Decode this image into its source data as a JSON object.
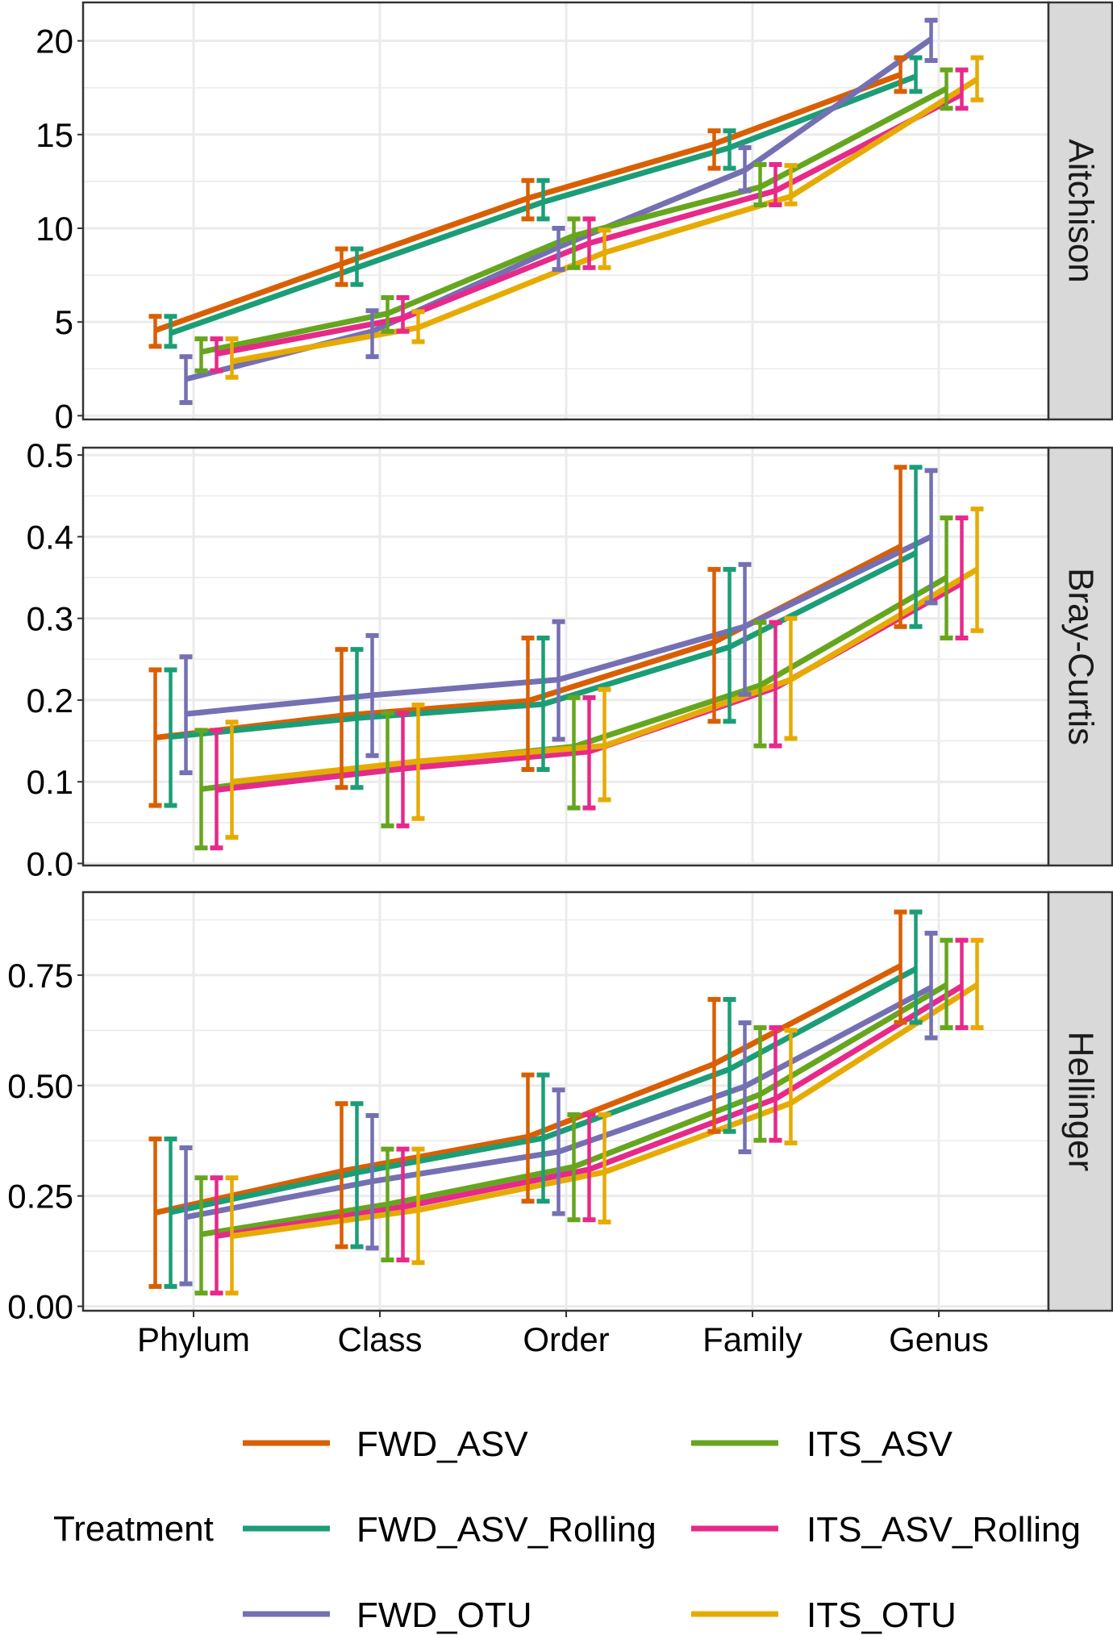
{
  "chart_data": {
    "type": "line",
    "subtype": "faceted line chart with error bars",
    "xlabel": "",
    "ylabel": "",
    "categories": [
      "Phylum",
      "Class",
      "Order",
      "Family",
      "Genus"
    ],
    "legend": {
      "title": "Treatment",
      "placement": "bottom",
      "entries": [
        "FWD_ASV",
        "FWD_ASV_Rolling",
        "FWD_OTU",
        "ITS_ASV",
        "ITS_ASV_Rolling",
        "ITS_OTU"
      ]
    },
    "colors": {
      "FWD_ASV": "#D95F02",
      "FWD_ASV_Rolling": "#1B9E77",
      "FWD_OTU": "#7570B3",
      "ITS_ASV": "#66A61E",
      "ITS_ASV_Rolling": "#E7298A",
      "ITS_OTU": "#E6AB02"
    },
    "grid": true,
    "facets": [
      {
        "strip": "Aitchison",
        "ylim": [
          -0.2,
          22.05
        ],
        "yticks": [
          0,
          5,
          10,
          15,
          20
        ],
        "ytick_labels": [
          "0",
          "5",
          "10",
          "15",
          "20"
        ],
        "series": [
          {
            "name": "FWD_ASV",
            "values": [
              4.55,
              8.1,
              11.6,
              14.5,
              18.2
            ],
            "lower": [
              3.7,
              7.0,
              10.5,
              13.2,
              17.3
            ],
            "upper": [
              5.3,
              8.9,
              12.55,
              15.2,
              19.1
            ]
          },
          {
            "name": "FWD_ASV_Rolling",
            "values": [
              4.4,
              7.9,
              11.4,
              14.3,
              18.1
            ],
            "lower": [
              3.7,
              7.0,
              10.5,
              13.2,
              17.3
            ],
            "upper": [
              5.3,
              8.9,
              12.55,
              15.2,
              19.1
            ]
          },
          {
            "name": "FWD_OTU",
            "values": [
              1.95,
              4.5,
              9.0,
              13.1,
              20.1
            ],
            "lower": [
              0.7,
              3.15,
              7.8,
              12.0,
              18.95
            ],
            "upper": [
              3.15,
              5.6,
              10.0,
              14.3,
              21.1
            ]
          },
          {
            "name": "ITS_ASV",
            "values": [
              3.4,
              5.45,
              9.6,
              12.2,
              17.45
            ],
            "lower": [
              2.4,
              4.5,
              7.9,
              11.25,
              16.4
            ],
            "upper": [
              4.1,
              6.3,
              10.5,
              13.4,
              18.45
            ]
          },
          {
            "name": "ITS_ASV_Rolling",
            "values": [
              3.3,
              5.2,
              9.2,
              12.0,
              17.15
            ],
            "lower": [
              2.4,
              4.5,
              7.9,
              11.25,
              16.4
            ],
            "upper": [
              4.1,
              6.3,
              10.5,
              13.4,
              18.45
            ]
          },
          {
            "name": "ITS_OTU",
            "values": [
              2.9,
              4.7,
              8.7,
              11.7,
              17.95
            ],
            "lower": [
              2.05,
              3.95,
              7.9,
              11.3,
              16.85
            ],
            "upper": [
              4.1,
              5.55,
              9.9,
              13.35,
              19.1
            ]
          }
        ]
      },
      {
        "strip": "Bray-Curtis",
        "ylim": [
          -0.0025,
          0.509
        ],
        "yticks": [
          0,
          0.1,
          0.2,
          0.3,
          0.4,
          0.5
        ],
        "ytick_labels": [
          "0.0",
          "0.1",
          "0.2",
          "0.3",
          "0.4",
          "0.5"
        ],
        "series": [
          {
            "name": "FWD_ASV",
            "values": [
              0.154,
              0.181,
              0.199,
              0.271,
              0.388
            ],
            "lower": [
              0.071,
              0.093,
              0.115,
              0.174,
              0.29
            ],
            "upper": [
              0.237,
              0.262,
              0.276,
              0.36,
              0.485
            ]
          },
          {
            "name": "FWD_ASV_Rolling",
            "values": [
              0.155,
              0.178,
              0.195,
              0.265,
              0.38
            ],
            "lower": [
              0.071,
              0.093,
              0.115,
              0.174,
              0.29
            ],
            "upper": [
              0.237,
              0.262,
              0.276,
              0.36,
              0.485
            ]
          },
          {
            "name": "FWD_OTU",
            "values": [
              0.183,
              0.206,
              0.225,
              0.29,
              0.4
            ],
            "lower": [
              0.111,
              0.132,
              0.152,
              0.207,
              0.319
            ],
            "upper": [
              0.253,
              0.279,
              0.296,
              0.366,
              0.481
            ]
          },
          {
            "name": "ITS_ASV",
            "values": [
              0.091,
              0.12,
              0.143,
              0.218,
              0.35
            ],
            "lower": [
              0.019,
              0.046,
              0.068,
              0.144,
              0.276
            ],
            "upper": [
              0.163,
              0.184,
              0.203,
              0.295,
              0.423
            ]
          },
          {
            "name": "ITS_ASV_Rolling",
            "values": [
              0.09,
              0.116,
              0.137,
              0.215,
              0.343
            ],
            "lower": [
              0.019,
              0.046,
              0.068,
              0.144,
              0.276
            ],
            "upper": [
              0.163,
              0.184,
              0.203,
              0.295,
              0.423
            ]
          },
          {
            "name": "ITS_OTU",
            "values": [
              0.1,
              0.125,
              0.144,
              0.225,
              0.36
            ],
            "lower": [
              0.032,
              0.055,
              0.078,
              0.153,
              0.285
            ],
            "upper": [
              0.173,
              0.194,
              0.213,
              0.3,
              0.434
            ]
          }
        ]
      },
      {
        "strip": "Hellinger",
        "ylim": [
          -0.01,
          0.938
        ],
        "yticks": [
          0,
          0.25,
          0.5,
          0.75
        ],
        "ytick_labels": [
          "0.00",
          "0.25",
          "0.50",
          "0.75"
        ],
        "series": [
          {
            "name": "FWD_ASV",
            "values": [
              0.212,
              0.306,
              0.384,
              0.549,
              0.771
            ],
            "lower": [
              0.045,
              0.135,
              0.238,
              0.396,
              0.643
            ],
            "upper": [
              0.379,
              0.459,
              0.524,
              0.695,
              0.893
            ]
          },
          {
            "name": "FWD_ASV_Rolling",
            "values": [
              0.213,
              0.303,
              0.381,
              0.537,
              0.764
            ],
            "lower": [
              0.045,
              0.135,
              0.238,
              0.396,
              0.643
            ],
            "upper": [
              0.379,
              0.459,
              0.524,
              0.695,
              0.893
            ]
          },
          {
            "name": "FWD_OTU",
            "values": [
              0.202,
              0.283,
              0.35,
              0.498,
              0.722
            ],
            "lower": [
              0.051,
              0.132,
              0.21,
              0.35,
              0.608
            ],
            "upper": [
              0.359,
              0.432,
              0.49,
              0.642,
              0.845
            ]
          },
          {
            "name": "ITS_ASV",
            "values": [
              0.163,
              0.231,
              0.316,
              0.48,
              0.728
            ],
            "lower": [
              0.03,
              0.105,
              0.196,
              0.376,
              0.631
            ],
            "upper": [
              0.291,
              0.356,
              0.434,
              0.631,
              0.829
            ]
          },
          {
            "name": "ITS_ASV_Rolling",
            "values": [
              0.159,
              0.225,
              0.31,
              0.47,
              0.725
            ],
            "lower": [
              0.03,
              0.105,
              0.196,
              0.376,
              0.631
            ],
            "upper": [
              0.291,
              0.356,
              0.434,
              0.631,
              0.829
            ]
          },
          {
            "name": "ITS_OTU",
            "values": [
              0.159,
              0.218,
              0.304,
              0.46,
              0.728
            ],
            "lower": [
              0.03,
              0.099,
              0.191,
              0.37,
              0.631
            ],
            "upper": [
              0.291,
              0.356,
              0.434,
              0.625,
              0.829
            ]
          }
        ]
      }
    ]
  }
}
